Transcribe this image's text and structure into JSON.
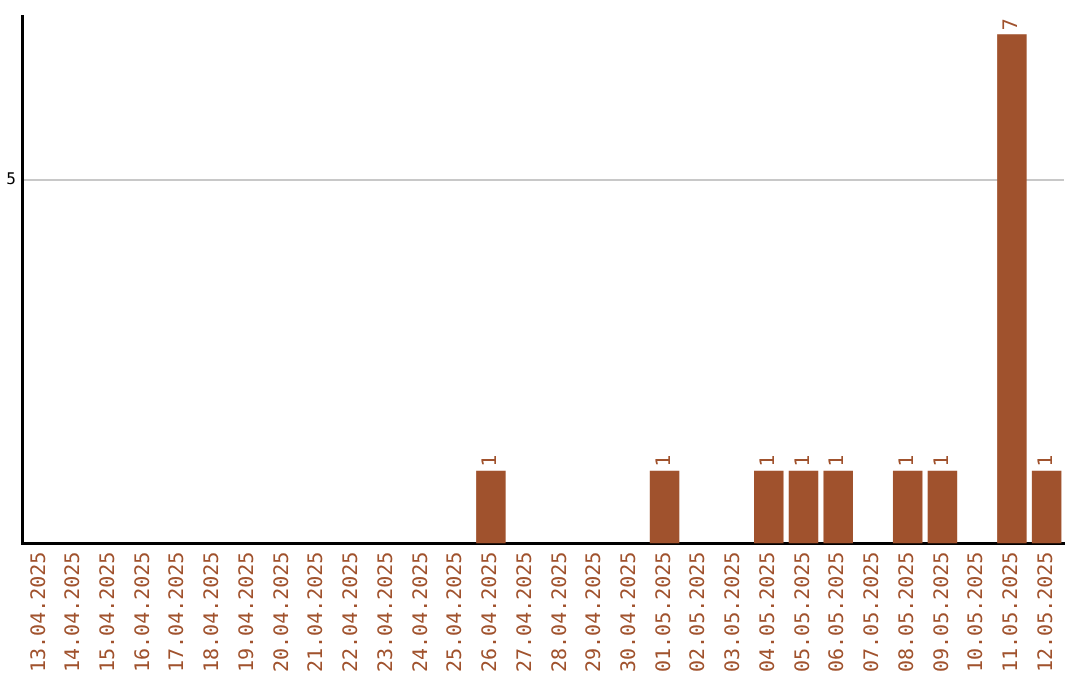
{
  "chart_data": {
    "type": "bar",
    "categories": [
      "13.04.2025",
      "14.04.2025",
      "15.04.2025",
      "16.04.2025",
      "17.04.2025",
      "18.04.2025",
      "19.04.2025",
      "20.04.2025",
      "21.04.2025",
      "22.04.2025",
      "23.04.2025",
      "24.04.2025",
      "25.04.2025",
      "26.04.2025",
      "27.04.2025",
      "28.04.2025",
      "29.04.2025",
      "30.04.2025",
      "01.05.2025",
      "02.05.2025",
      "03.05.2025",
      "04.05.2025",
      "05.05.2025",
      "06.05.2025",
      "07.05.2025",
      "08.05.2025",
      "09.05.2025",
      "10.05.2025",
      "11.05.2025",
      "12.05.2025"
    ],
    "values": [
      null,
      null,
      null,
      null,
      null,
      null,
      null,
      null,
      null,
      null,
      null,
      null,
      null,
      1,
      null,
      null,
      null,
      null,
      1,
      null,
      null,
      1,
      1,
      1,
      null,
      1,
      1,
      null,
      7,
      1
    ],
    "data_labels": true,
    "color": "#a0522d",
    "ylim": [
      0,
      7.25
    ],
    "yticks": [
      5
    ],
    "grid": "y",
    "legend": false
  }
}
